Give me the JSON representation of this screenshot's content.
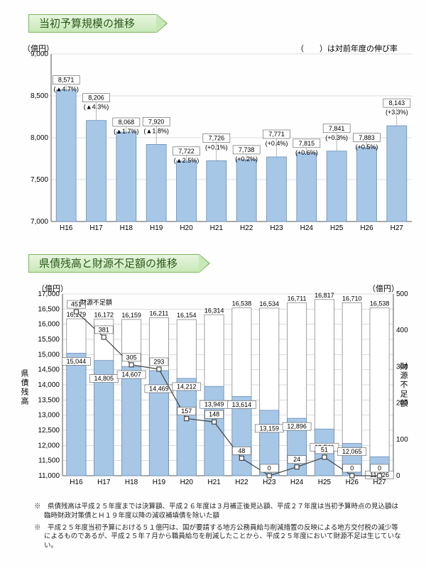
{
  "chart1": {
    "title": "当初予算規模の推移",
    "y_unit": "（億円）",
    "legend_note": "（　　）は対前年度の伸び率",
    "ylim": [
      7000,
      9000
    ],
    "ytick_step": 500,
    "bar_color": "#a7c7e7",
    "grid_color": "#bbbbbb",
    "categories": [
      "H16",
      "H17",
      "H18",
      "H19",
      "H20",
      "H21",
      "H22",
      "H23",
      "H24",
      "H25",
      "H26",
      "H27"
    ],
    "values": [
      8571,
      8206,
      8068,
      7920,
      7722,
      7726,
      7738,
      7771,
      7815,
      7841,
      7883,
      8143
    ],
    "value_labels": [
      "8,571",
      "8,206",
      "8,068",
      "7,920",
      "7,722",
      "7,726",
      "7,738",
      "7,771",
      "7,815",
      "7,841",
      "7,883",
      "8,143"
    ],
    "growth_labels": [
      "(▲4.7%)",
      "(▲4.3%)",
      "(▲1.7%)",
      "(▲1.8%)",
      "(▲2.5%)",
      "(+0.1%)",
      "(+0.2%)",
      "(+0.4%)",
      "(+0.6%)",
      "(+0.3%)",
      "(+0.5%)",
      "(+3.3%)"
    ]
  },
  "chart2": {
    "title": "県債残高と財源不足額の推移",
    "y_unit_left": "（億円）",
    "y_unit_right": "（億円）",
    "ylabel_left": "県債残高",
    "ylabel_right": "財源不足額",
    "line_legend": "財源不足額",
    "ylim_left": [
      11000,
      17000
    ],
    "ytick_step_left": 500,
    "ylim_right": [
      0,
      500
    ],
    "ytick_step_right": 100,
    "bar_color": "#a7c7e7",
    "line_color": "#444444",
    "categories": [
      "H16",
      "H17",
      "H18",
      "H19",
      "H20",
      "H21",
      "H22",
      "H23",
      "H24",
      "H25",
      "H26",
      "H27"
    ],
    "total_values": [
      16179,
      16172,
      16159,
      16211,
      16154,
      16314,
      16538,
      16534,
      16711,
      16817,
      16710,
      16538
    ],
    "total_labels": [
      "16,179",
      "16,172",
      "16,159",
      "16,211",
      "16,154",
      "16,314",
      "16,538",
      "16,534",
      "16,711",
      "16,817",
      "16,710",
      "16,538"
    ],
    "inner_values": [
      15044,
      14805,
      14607,
      14469,
      14212,
      13949,
      13614,
      13159,
      12896,
      12541,
      12065,
      11626
    ],
    "inner_labels": [
      "15,044",
      "14,805",
      "14,607",
      "14,469",
      "14,212",
      "13,949",
      "13,614",
      "13,159",
      "12,896",
      "12,541",
      "12,065",
      "11,626"
    ],
    "line_values": [
      451,
      381,
      305,
      293,
      157,
      148,
      48,
      0,
      24,
      51,
      0,
      0
    ],
    "line_labels": [
      "451",
      "381",
      "305",
      "293",
      "157",
      "148",
      "48",
      "0",
      "24",
      "51",
      "0",
      "0"
    ]
  },
  "footnotes": [
    "※　県債残高は平成２５年度までは決算額、平成２６年度は３月補正後見込額、平成２７年度は当初予算時点の見込額は臨時財政対策債とＨ１９年度以降の減収補填債を除いた額",
    "※　平成２５年度当初予算における５１億円は、国が要請する地方公務員給与削減措置の反映による地方交付税の減少等によるものであるが、平成２５年７月から職員給与を削減したことから、平成２５年度において財源不足は生じていない。"
  ]
}
